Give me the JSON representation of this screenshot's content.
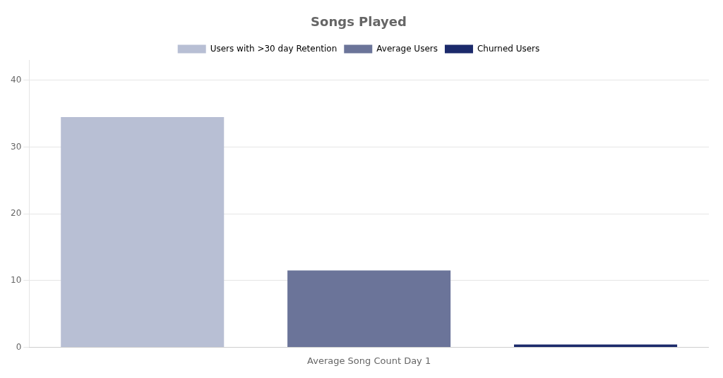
{
  "chart_data": {
    "type": "bar",
    "title": "Songs Played",
    "xlabel": "Average Song Count Day 1",
    "categories": [
      "Users with >30 day Retention",
      "Average Users",
      "Churned Users"
    ],
    "values": [
      34.5,
      11.5,
      0.4
    ],
    "colors": [
      "#b8bfd4",
      "#6b7499",
      "#1b2a6b"
    ],
    "ylim": [
      0,
      43
    ],
    "yticks": [
      0,
      10,
      20,
      30,
      40
    ],
    "grid": true,
    "legend": "top",
    "tick_labels": "y"
  }
}
